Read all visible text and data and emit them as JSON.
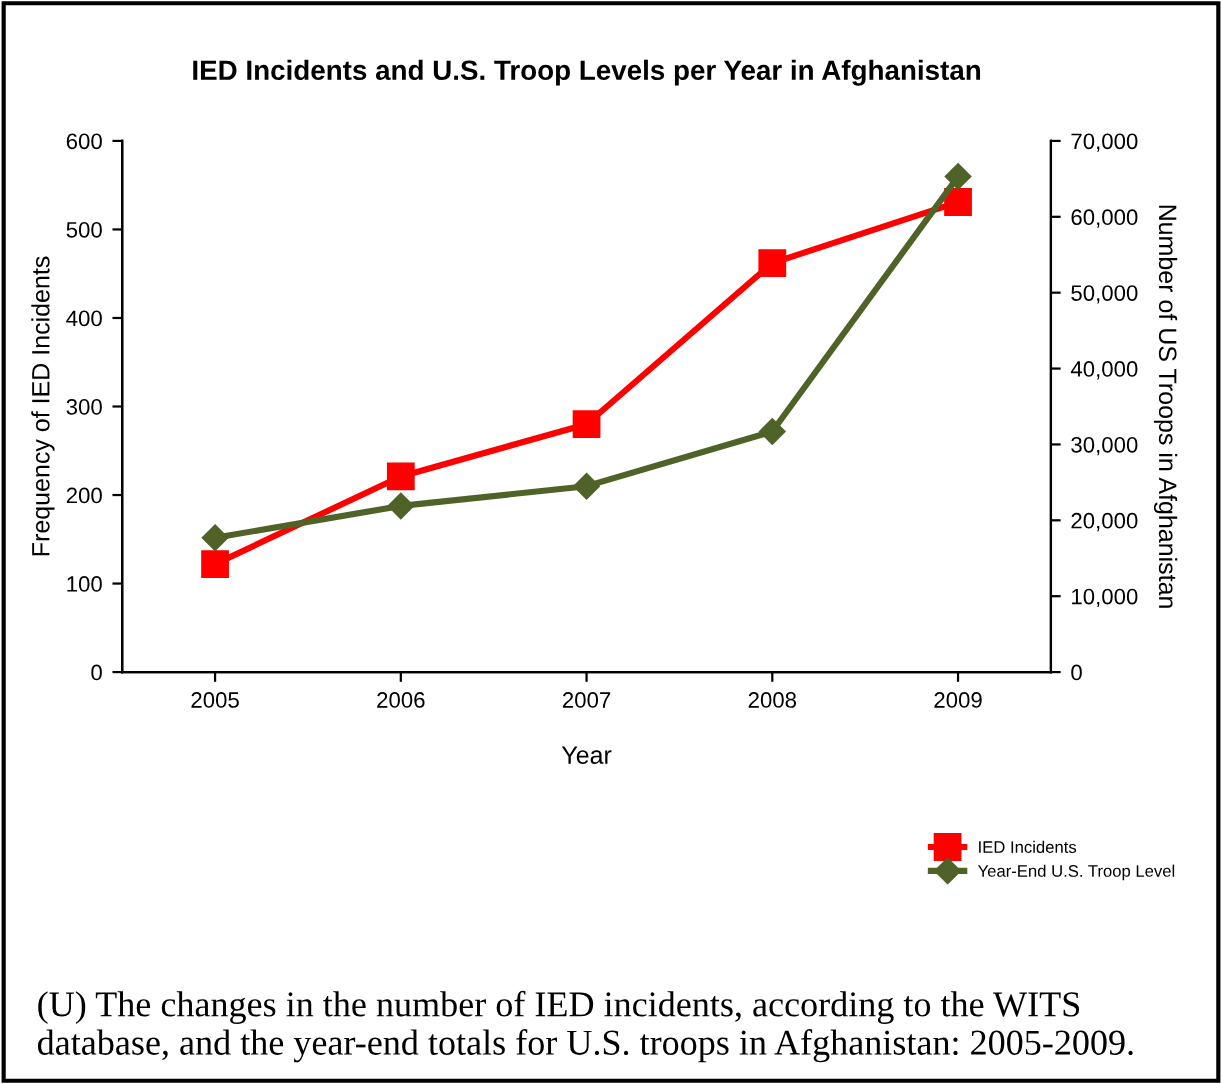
{
  "chart_data": {
    "type": "line",
    "title": "IED Incidents and U.S. Troop Levels per Year in Afghanistan",
    "xlabel": "Year",
    "ylabel": "Frequency of IED Incidents",
    "y2label": "Number of US Troops in Afghanistan",
    "categories": [
      "2005",
      "2006",
      "2007",
      "2008",
      "2009"
    ],
    "series": [
      {
        "name": "IED Incidents",
        "color": "#ff0000",
        "values": [
          122,
          221,
          280,
          462,
          531
        ],
        "marker": "square"
      },
      {
        "name": "Year-End U.S. Troop Level",
        "color": "#4f6228",
        "values": [
          17700,
          21900,
          24500,
          31700,
          65300
        ],
        "axis": "y2",
        "marker": "diamond"
      }
    ],
    "ylim": [
      0,
      600
    ],
    "yticks": [
      0,
      100,
      200,
      300,
      400,
      500,
      600
    ],
    "y2lim": [
      0,
      70000
    ],
    "y2ticks": [
      {
        "value": 0,
        "label": "0"
      },
      {
        "value": 10000,
        "label": "10,000"
      },
      {
        "value": 20000,
        "label": "20,000"
      },
      {
        "value": 30000,
        "label": "30,000"
      },
      {
        "value": 40000,
        "label": "40,000"
      },
      {
        "value": 50000,
        "label": "50,000"
      },
      {
        "value": 60000,
        "label": "60,000"
      },
      {
        "value": 70000,
        "label": "70,000"
      }
    ],
    "legend": "bottom right",
    "grid": false,
    "annotations": [
      "(U) The changes in the number of IED incidents, according to the WITS database, and the year-end totals for U.S. troops in Afghanistan: 2005-2009."
    ]
  }
}
